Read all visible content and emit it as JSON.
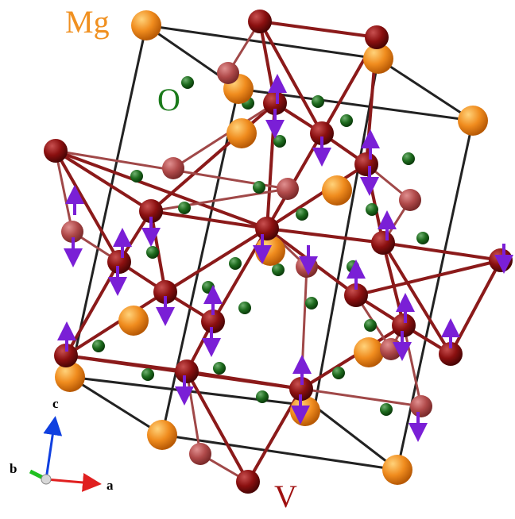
{
  "labels": {
    "mg": "Mg",
    "o": "O",
    "v": "V"
  },
  "axes": {
    "a": "a",
    "b": "b",
    "c": "c"
  },
  "colors": {
    "mg": "#f08c1e",
    "o": "#1e6b1e",
    "v": "#8b1010",
    "v_light": "#b04a4a",
    "bond": "#8b1a1a",
    "cell": "#222222",
    "spin": "#7a1fd6",
    "label_v": "#a01010",
    "label_mg": "#f09020",
    "label_o": "#1a7a1a"
  }
}
